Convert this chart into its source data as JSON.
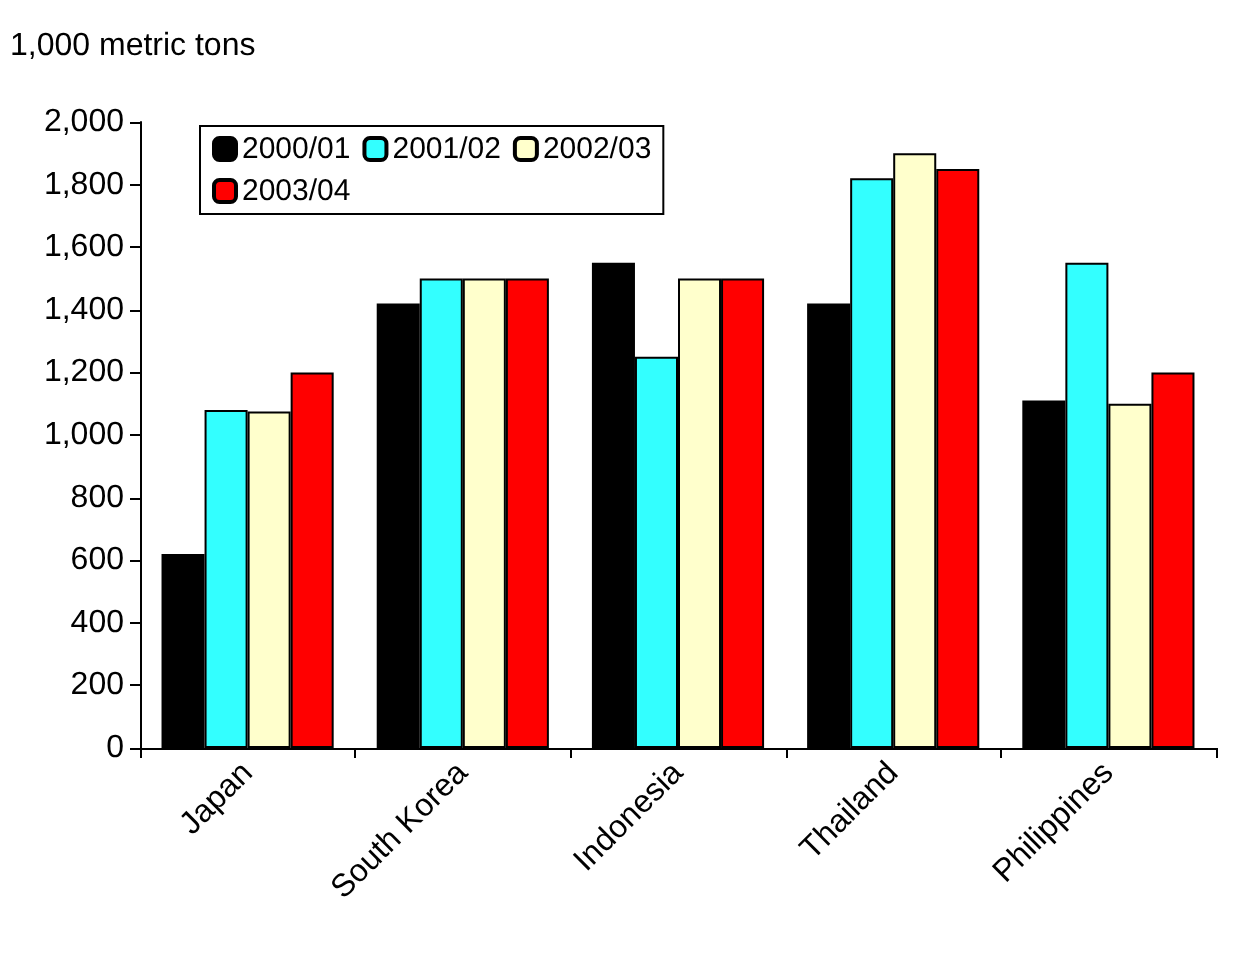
{
  "chart_data": {
    "type": "bar",
    "ylabel": "1,000 metric tons",
    "categories": [
      "Japan",
      "South Korea",
      "Indonesia",
      "Thailand",
      "Philippines"
    ],
    "series": [
      {
        "name": "2000/01",
        "color": "#000000",
        "values": [
          620,
          1420,
          1550,
          1420,
          1110
        ]
      },
      {
        "name": "2001/02",
        "color": "#33ffff",
        "values": [
          1080,
          1500,
          1250,
          1820,
          1550
        ]
      },
      {
        "name": "2002/03",
        "color": "#ffffcc",
        "values": [
          1075,
          1500,
          1500,
          1900,
          1100
        ]
      },
      {
        "name": "2003/04",
        "color": "#ff0000",
        "values": [
          1200,
          1500,
          1500,
          1850,
          1200
        ]
      }
    ],
    "ylim": [
      0,
      2000
    ],
    "yticks": [
      0,
      200,
      400,
      600,
      800,
      {
        "value": 1000,
        "label": "1,000"
      },
      {
        "value": 1200,
        "label": "1,200"
      },
      {
        "value": 1400,
        "label": "1,400"
      },
      {
        "value": 1600,
        "label": "1,600"
      },
      {
        "value": 1800,
        "label": "1,800"
      },
      {
        "value": 2000,
        "label": "2,000"
      }
    ],
    "grid": false,
    "legend": "top left"
  }
}
